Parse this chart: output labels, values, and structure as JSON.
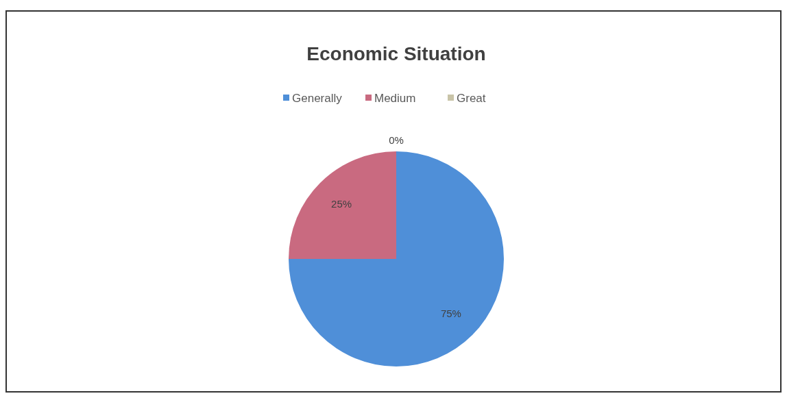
{
  "chart_data": {
    "type": "pie",
    "title": "Economic Situation",
    "categories": [
      "Generally",
      "Medium",
      "Great"
    ],
    "values": [
      75,
      25,
      0
    ],
    "colors": [
      "#4f8fd8",
      "#c96a80",
      "#c9c4a8"
    ],
    "value_labels": [
      "75%",
      "25%",
      "0%"
    ],
    "legend": "top"
  }
}
